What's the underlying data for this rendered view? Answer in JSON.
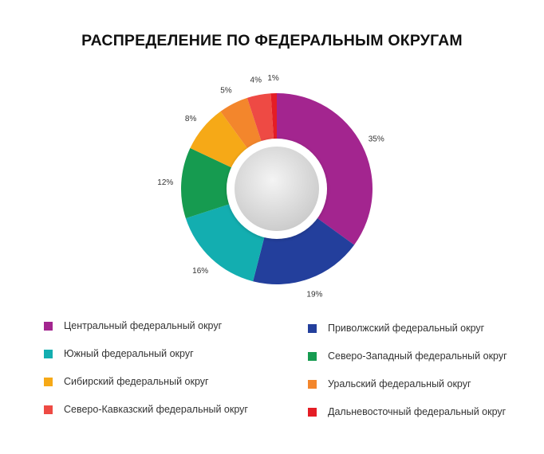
{
  "chart_data": {
    "type": "pie",
    "variant": "donut",
    "title": "РАСПРЕДЕЛЕНИЕ ПО ФЕДЕРАЛЬНЫМ ОКРУГАМ",
    "slices": [
      {
        "label": "Центральный федеральный округ",
        "value": 35,
        "value_label": "35%",
        "color": "#A3258F"
      },
      {
        "label": "Приволжский федеральный округ",
        "value": 19,
        "value_label": "19%",
        "color": "#233F9C"
      },
      {
        "label": "Южный федеральный округ",
        "value": 16,
        "value_label": "16%",
        "color": "#13AEB0"
      },
      {
        "label": "Северо-Западный федеральный округ",
        "value": 12,
        "value_label": "12%",
        "color": "#169B50"
      },
      {
        "label": "Сибирский федеральный округ",
        "value": 8,
        "value_label": "8%",
        "color": "#F6A917"
      },
      {
        "label": "Уральский федеральный округ",
        "value": 5,
        "value_label": "5%",
        "color": "#F3862C"
      },
      {
        "label": "Северо-Кавказский федеральный округ",
        "value": 4,
        "value_label": "4%",
        "color": "#EE4A44"
      },
      {
        "label": "Дальневосточный федеральный округ",
        "value": 1,
        "value_label": "1%",
        "color": "#E41D25"
      }
    ],
    "legend_placement": "bottom",
    "legend_columns": [
      [
        "Центральный федеральный округ",
        "Южный федеральный округ",
        "Сибирский федеральный округ",
        "Северо-Кавказский федеральный округ"
      ],
      [
        "Приволжский федеральный округ",
        "Северо-Западный федеральный округ",
        "Уральский федеральный округ",
        "Дальневосточный федеральный округ"
      ]
    ]
  }
}
